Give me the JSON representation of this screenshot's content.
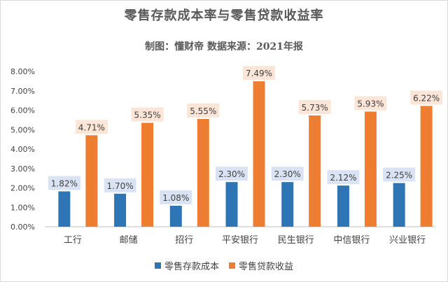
{
  "chart_data": {
    "type": "bar",
    "title": "零售存款成本率与零售贷款收益率",
    "subtitle": "制图：懂财帝   数据来源：2021年报",
    "categories": [
      "工行",
      "邮储",
      "招行",
      "平安银行",
      "民生银行",
      "中信银行",
      "兴业银行"
    ],
    "series": [
      {
        "name": "零售存款成本",
        "color": "#2e75b6",
        "label_bg": "#dae3f3",
        "values": [
          1.82,
          1.7,
          1.08,
          2.3,
          2.3,
          2.12,
          2.25
        ],
        "labels": [
          "1.82%",
          "1.70%",
          "1.08%",
          "2.30%",
          "2.30%",
          "2.12%",
          "2.25%"
        ]
      },
      {
        "name": "零售贷款收益",
        "color": "#ed7d31",
        "label_bg": "#fbe5d6",
        "values": [
          4.71,
          5.35,
          5.55,
          7.49,
          5.73,
          5.93,
          6.22
        ],
        "labels": [
          "4.71%",
          "5.35%",
          "5.55%",
          "7.49%",
          "5.73%",
          "5.93%",
          "6.22%"
        ]
      }
    ],
    "ylim": [
      0,
      8
    ],
    "yticks": [
      0,
      1,
      2,
      3,
      4,
      5,
      6,
      7,
      8
    ],
    "ytick_labels": [
      "0.00%",
      "1.00%",
      "2.00%",
      "3.00%",
      "4.00%",
      "5.00%",
      "6.00%",
      "7.00%",
      "8.00%"
    ],
    "grid": false,
    "legend_position": "bottom"
  }
}
